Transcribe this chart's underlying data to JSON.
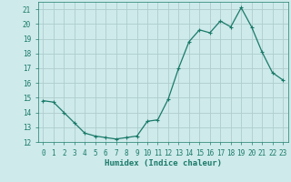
{
  "x": [
    0,
    1,
    2,
    3,
    4,
    5,
    6,
    7,
    8,
    9,
    10,
    11,
    12,
    13,
    14,
    15,
    16,
    17,
    18,
    19,
    20,
    21,
    22,
    23
  ],
  "y": [
    14.8,
    14.7,
    14.0,
    13.3,
    12.6,
    12.4,
    12.3,
    12.2,
    12.3,
    12.4,
    13.4,
    13.5,
    14.9,
    17.0,
    18.8,
    19.6,
    19.4,
    20.2,
    19.8,
    21.1,
    19.8,
    18.1,
    16.7,
    16.2
  ],
  "line_color": "#1a7a6a",
  "marker": "+",
  "markersize": 3,
  "linewidth": 0.9,
  "bg_color": "#ceeaea",
  "grid_color": "#b0cdcd",
  "xlabel": "Humidex (Indice chaleur)",
  "xlabel_fontsize": 6.5,
  "xlim": [
    -0.5,
    23.5
  ],
  "ylim": [
    12,
    21.5
  ],
  "yticks": [
    12,
    13,
    14,
    15,
    16,
    17,
    18,
    19,
    20,
    21
  ],
  "xticks": [
    0,
    1,
    2,
    3,
    4,
    5,
    6,
    7,
    8,
    9,
    10,
    11,
    12,
    13,
    14,
    15,
    16,
    17,
    18,
    19,
    20,
    21,
    22,
    23
  ],
  "tick_fontsize": 5.5,
  "label_color": "#1a7a6a"
}
